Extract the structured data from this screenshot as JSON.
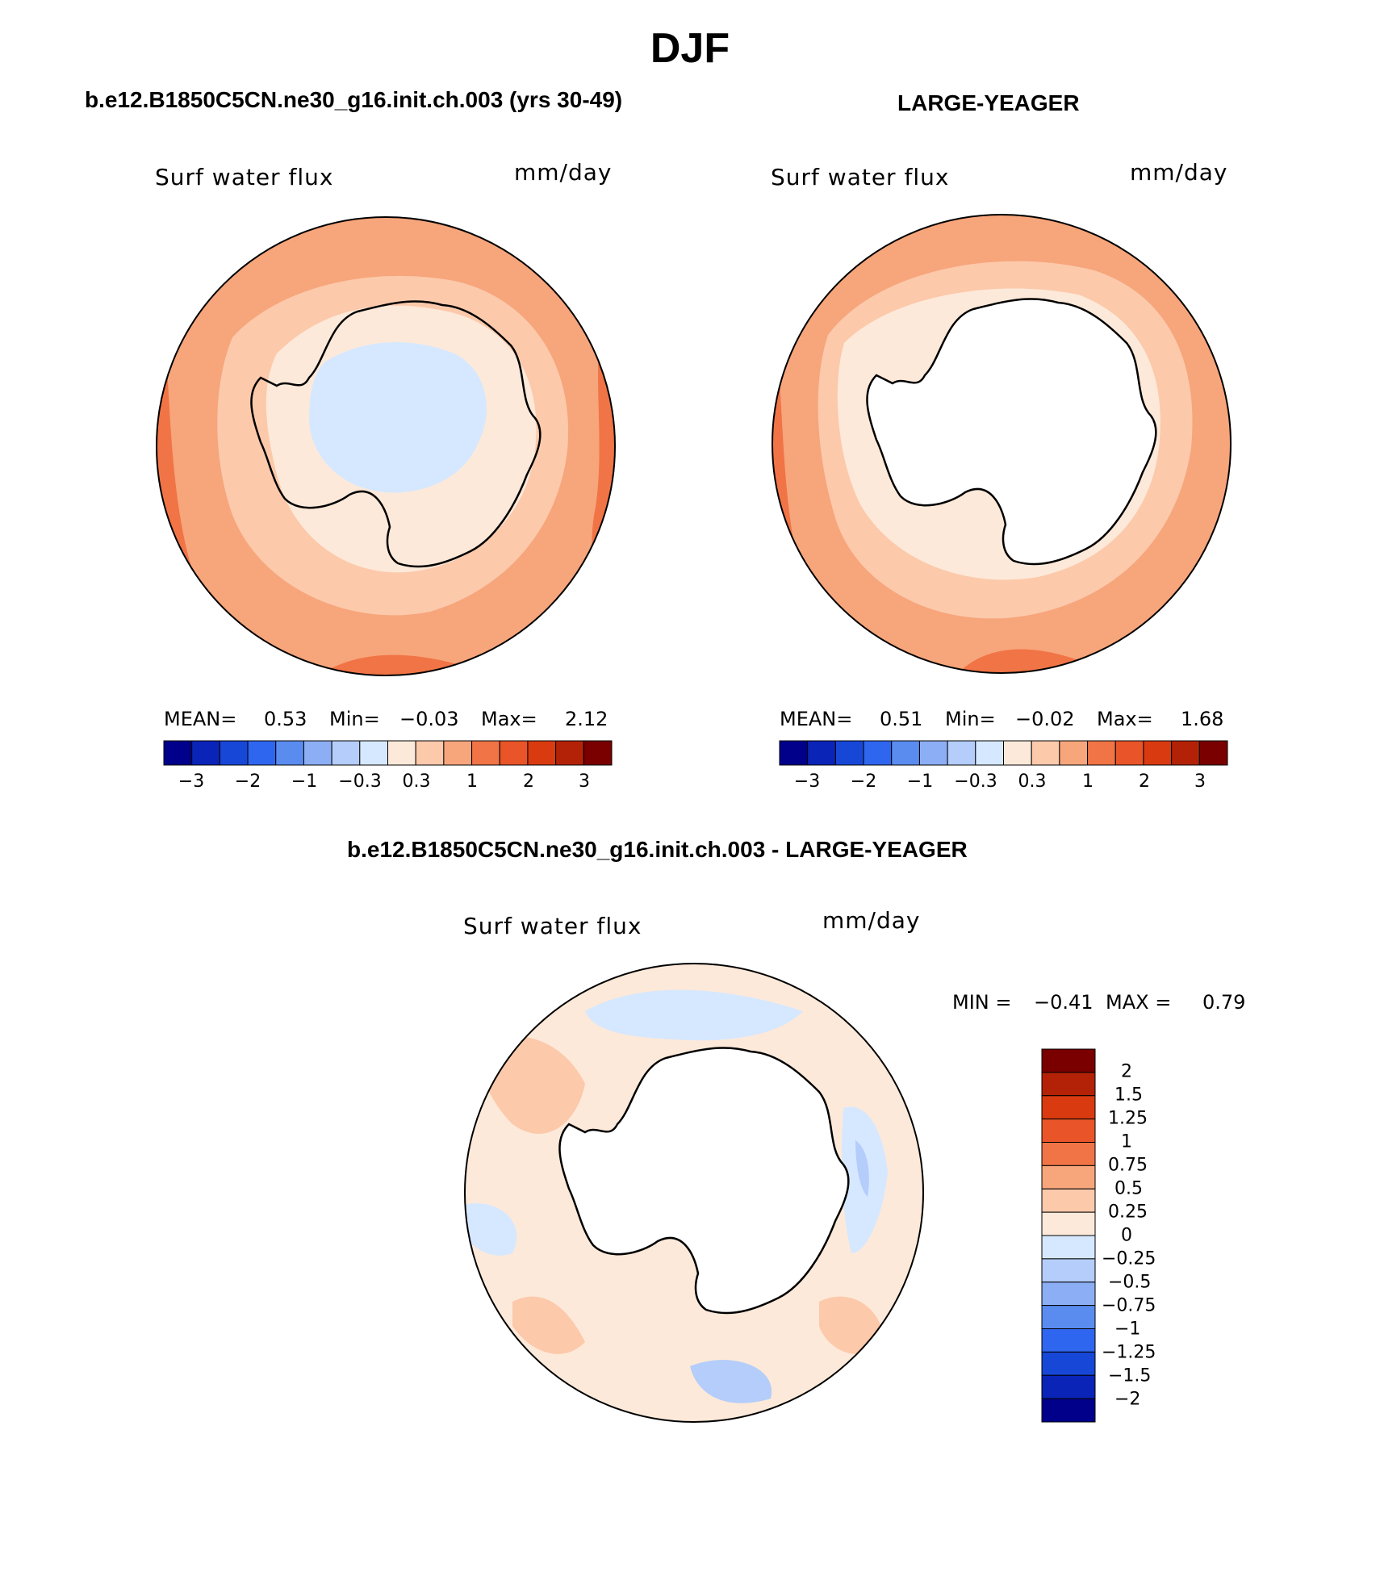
{
  "figure_title": "DJF",
  "colors": {
    "ice_blue": "#d6e8ff",
    "light_peach": "#fde9d9",
    "peach": "#fcc9ab",
    "salmon": "#f7a57b",
    "orange": "#f07446",
    "red_orange": "#e95528"
  },
  "panels": [
    {
      "case_title": "b.e12.B1850C5CN.ne30_g16.init.ch.003 (yrs 30-49)",
      "variable": "Surf water flux",
      "units": "mm/day",
      "stats": {
        "mean_label": "MEAN=",
        "mean": "0.53",
        "min_label": "Min=",
        "min": "−0.03",
        "max_label": "Max=",
        "max": "2.12"
      },
      "colorbar_ticks": [
        "−3",
        "−2",
        "−1",
        "−0.3",
        "0.3",
        "1",
        "2",
        "3"
      ]
    },
    {
      "case_title": "LARGE-YEAGER",
      "variable": "Surf water flux",
      "units": "mm/day",
      "stats": {
        "mean_label": "MEAN=",
        "mean": "0.51",
        "min_label": "Min=",
        "min": "−0.02",
        "max_label": "Max=",
        "max": "1.68"
      },
      "colorbar_ticks": [
        "−3",
        "−2",
        "−1",
        "−0.3",
        "0.3",
        "1",
        "2",
        "3"
      ]
    }
  ],
  "diff_panel": {
    "case_title": "b.e12.B1850C5CN.ne30_g16.init.ch.003 - LARGE-YEAGER",
    "variable": "Surf water flux",
    "units": "mm/day",
    "stats": {
      "min_label": "MIN =",
      "min": "−0.41",
      "max_label": "MAX =",
      "max": "0.79"
    },
    "colorbar_ticks": [
      "2",
      "1.5",
      "1.25",
      "1",
      "0.75",
      "0.5",
      "0.25",
      "0",
      "−0.25",
      "−0.5",
      "−0.75",
      "−1",
      "−1.25",
      "−1.5",
      "−2"
    ]
  },
  "main_colorbar_colors": [
    "#00008b",
    "#0a24b8",
    "#1747d6",
    "#2e66ef",
    "#5a8cf0",
    "#8caef5",
    "#b4cdfa",
    "#d6e8ff",
    "#fde9d9",
    "#fcc9ab",
    "#f7a57b",
    "#f07446",
    "#e95528",
    "#d93a10",
    "#b32206",
    "#7a0000"
  ],
  "diff_colorbar_colors": [
    "#7a0000",
    "#b32206",
    "#d93a10",
    "#e95528",
    "#f07446",
    "#f7a57b",
    "#fcc9ab",
    "#fde9d9",
    "#d6e8ff",
    "#b4cdfa",
    "#8caef5",
    "#5a8cf0",
    "#2e66ef",
    "#1747d6",
    "#0a24b8",
    "#00008b"
  ]
}
